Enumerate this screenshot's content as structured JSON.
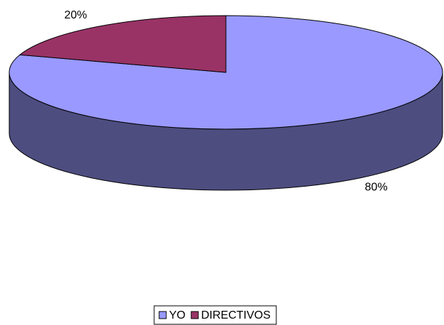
{
  "chart_data": {
    "type": "pie3d",
    "categories": [
      "YO",
      "DIRECTIVOS"
    ],
    "values": [
      80,
      20
    ],
    "value_labels": [
      "80%",
      "20%"
    ],
    "colors": [
      "#9999ff",
      "#993366"
    ],
    "legend": "bottom"
  }
}
